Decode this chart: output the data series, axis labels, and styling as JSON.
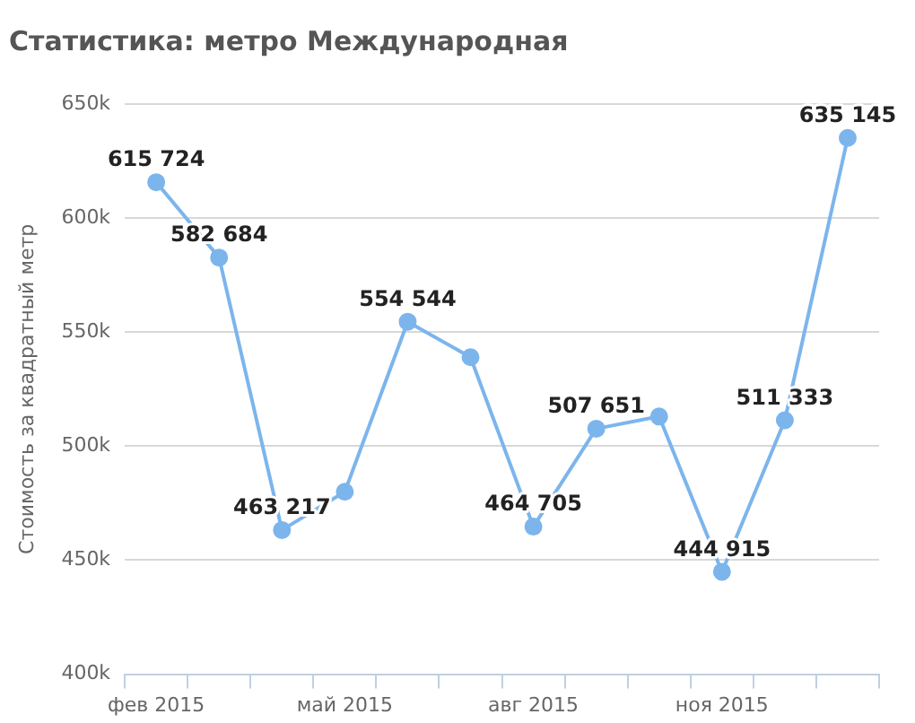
{
  "chart_data": {
    "type": "line",
    "title": "Статистика: метро Международная",
    "ylabel": "Стоимость за квадратный метр",
    "categories": [
      "фев 2015",
      null,
      null,
      "май 2015",
      null,
      null,
      "авг 2015",
      null,
      null,
      "ноя 2015",
      null,
      null
    ],
    "series": [
      {
        "color": "#7cb5ec",
        "values": [
          615724,
          582684,
          463217,
          480000,
          554544,
          539000,
          464705,
          507651,
          513000,
          444915,
          511333,
          635145
        ],
        "value_labels": [
          "615 724",
          "582 684",
          "463 217",
          null,
          "554 544",
          null,
          "464 705",
          "507 651",
          null,
          "444 915",
          "511 333",
          "635 145"
        ]
      }
    ],
    "ylim": [
      400000,
      650000
    ],
    "yticks": [
      {
        "value": 400000,
        "label": "400k"
      },
      {
        "value": 450000,
        "label": "450k"
      },
      {
        "value": 500000,
        "label": "500k"
      },
      {
        "value": 550000,
        "label": "550k"
      },
      {
        "value": 600000,
        "label": "600k"
      },
      {
        "value": 650000,
        "label": "650k"
      }
    ],
    "grid": "y",
    "legend": false,
    "marker": "circle",
    "line_style": "solid"
  }
}
